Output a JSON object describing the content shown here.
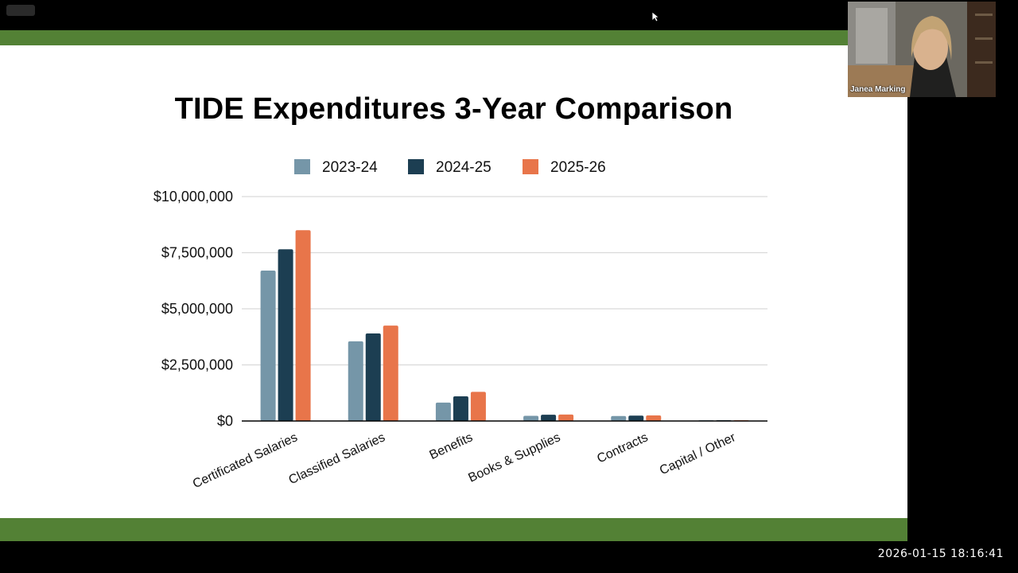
{
  "slide": {
    "title": "TIDE Expenditures 3-Year Comparison"
  },
  "chart_data": {
    "type": "bar",
    "title": "TIDE Expenditures 3-Year Comparison",
    "xlabel": "",
    "ylabel": "",
    "ylim": [
      0,
      10000000
    ],
    "yticks": [
      "$0",
      "$2,500,000",
      "$5,000,000",
      "$7,500,000",
      "$10,000,000"
    ],
    "ytick_values": [
      0,
      2500000,
      5000000,
      7500000,
      10000000
    ],
    "legend_position": "top",
    "categories": [
      "Certificated Salaries",
      "Classified Salaries",
      "Benefits",
      "Books & Supplies",
      "Contracts",
      "Capital / Other"
    ],
    "series": [
      {
        "name": "2023-24",
        "color": "#7596a8",
        "values": [
          6700000,
          3550000,
          820000,
          230000,
          220000,
          20000
        ]
      },
      {
        "name": "2024-25",
        "color": "#1c3e52",
        "values": [
          7650000,
          3900000,
          1100000,
          280000,
          240000,
          20000
        ]
      },
      {
        "name": "2025-26",
        "color": "#e8754a",
        "values": [
          8500000,
          4250000,
          1300000,
          290000,
          250000,
          20000
        ]
      }
    ]
  },
  "participant": {
    "name": "Janea Marking"
  },
  "recording": {
    "timestamp": "2026-01-15  18:16:41"
  },
  "colors": {
    "band": "#538135",
    "grid": "#d9d9d9",
    "axis": "#000000"
  },
  "icons": {
    "cursor": "mouse-pointer-icon"
  }
}
